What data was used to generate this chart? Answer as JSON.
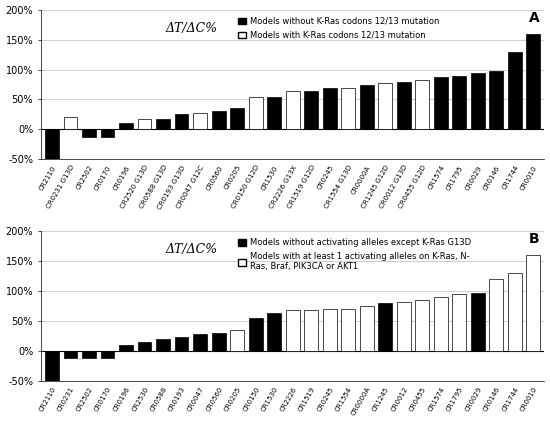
{
  "labels_A": [
    "CR2110",
    "CR0231 G13\nD",
    "CR2502",
    "CR0170",
    "CR0196",
    "CR2520 G13\nD",
    "CR0588 G13\nD",
    "CR0193 G13\nD",
    "CR0047 G12\nC",
    "CR0560",
    "CR0205",
    "CR0150 G12\nD",
    "CR1530",
    "CR2226 G13\nX",
    "CR1519 G12\nD",
    "CR0245",
    "CR1554 G13\nD",
    "CR0000A",
    "CR1245 G12\nD",
    "CR0012 G13\nD",
    "CR0455 G12\nD",
    "CR1574",
    "CR1795",
    "CR0029",
    "CR0146",
    "CR1744",
    "CR0010"
  ],
  "labels_A_disp": [
    "CR2110",
    "CR0231 G13D",
    "CR2502",
    "CR0170",
    "CR0196",
    "CR2520 G13D",
    "CR0588 G13D",
    "CR0193 G13D",
    "CR0047 G12C",
    "CR0560",
    "CR0205",
    "CR0150 G12D",
    "CR1530",
    "CR2226 G13X",
    "CR1519 G12D",
    "CR0245",
    "CR1554 G13D",
    "CR0000A",
    "CR1245 G12D",
    "CR0012 G13D",
    "CR0455 G12D",
    "CR1574",
    "CR1795",
    "CR0029",
    "CR0146",
    "CR1744",
    "CR0010"
  ],
  "values_A": [
    -50,
    20,
    -12,
    -12,
    10,
    18,
    18,
    25,
    27,
    30,
    35,
    55,
    55,
    65,
    65,
    70,
    70,
    75,
    77,
    80,
    82,
    87,
    90,
    95,
    97,
    130,
    160
  ],
  "colors_A": [
    "black",
    "white",
    "black",
    "black",
    "black",
    "white",
    "black",
    "black",
    "white",
    "black",
    "black",
    "white",
    "black",
    "white",
    "black",
    "black",
    "white",
    "black",
    "white",
    "black",
    "white",
    "black",
    "black",
    "black",
    "black",
    "black",
    "black"
  ],
  "labels_B": [
    "CR2110",
    "CR0231",
    "CR2502",
    "CR0170",
    "CR0196",
    "CR2530",
    "CR0588",
    "CR0193",
    "CR0047",
    "CR0560",
    "CR0205",
    "CR0150",
    "CR1530",
    "CR2226",
    "CR1519",
    "CR0245",
    "CR1554",
    "CR0000A",
    "CR1245",
    "CR0012",
    "CR0455",
    "CR1574",
    "CR1795",
    "CR0029",
    "CR0146",
    "CR1744",
    "CR0010"
  ],
  "values_B": [
    -50,
    -12,
    -12,
    -12,
    10,
    15,
    20,
    22,
    27,
    30,
    35,
    55,
    63,
    68,
    68,
    70,
    70,
    75,
    80,
    82,
    85,
    90,
    95,
    97,
    120,
    130,
    160
  ],
  "colors_B": [
    "black",
    "black",
    "black",
    "black",
    "black",
    "black",
    "black",
    "black",
    "black",
    "black",
    "white",
    "black",
    "black",
    "white",
    "white",
    "white",
    "white",
    "white",
    "black",
    "white",
    "white",
    "white",
    "white",
    "black",
    "white",
    "white",
    "white"
  ],
  "title_A": "ΔT/ΔC%",
  "title_B": "ΔT/ΔC%",
  "legend_A1": "Models without K-Ras codons 12/13 mutation",
  "legend_A2": "Models with K-Ras codons 12/13 mutation",
  "legend_B1": "Models without activating alleles except K-Ras G13D",
  "legend_B2": "Models with at least 1 activating alleles on K-Ras, N-\nRas, Braf, PIK3CA or AKT1",
  "ylim": [
    -50,
    200
  ],
  "yticks": [
    -50,
    0,
    50,
    100,
    150,
    200
  ],
  "ytick_labels": [
    "-50%",
    "0%",
    "50%",
    "100%",
    "150%",
    "200%"
  ],
  "panel_A": "A",
  "panel_B": "B"
}
